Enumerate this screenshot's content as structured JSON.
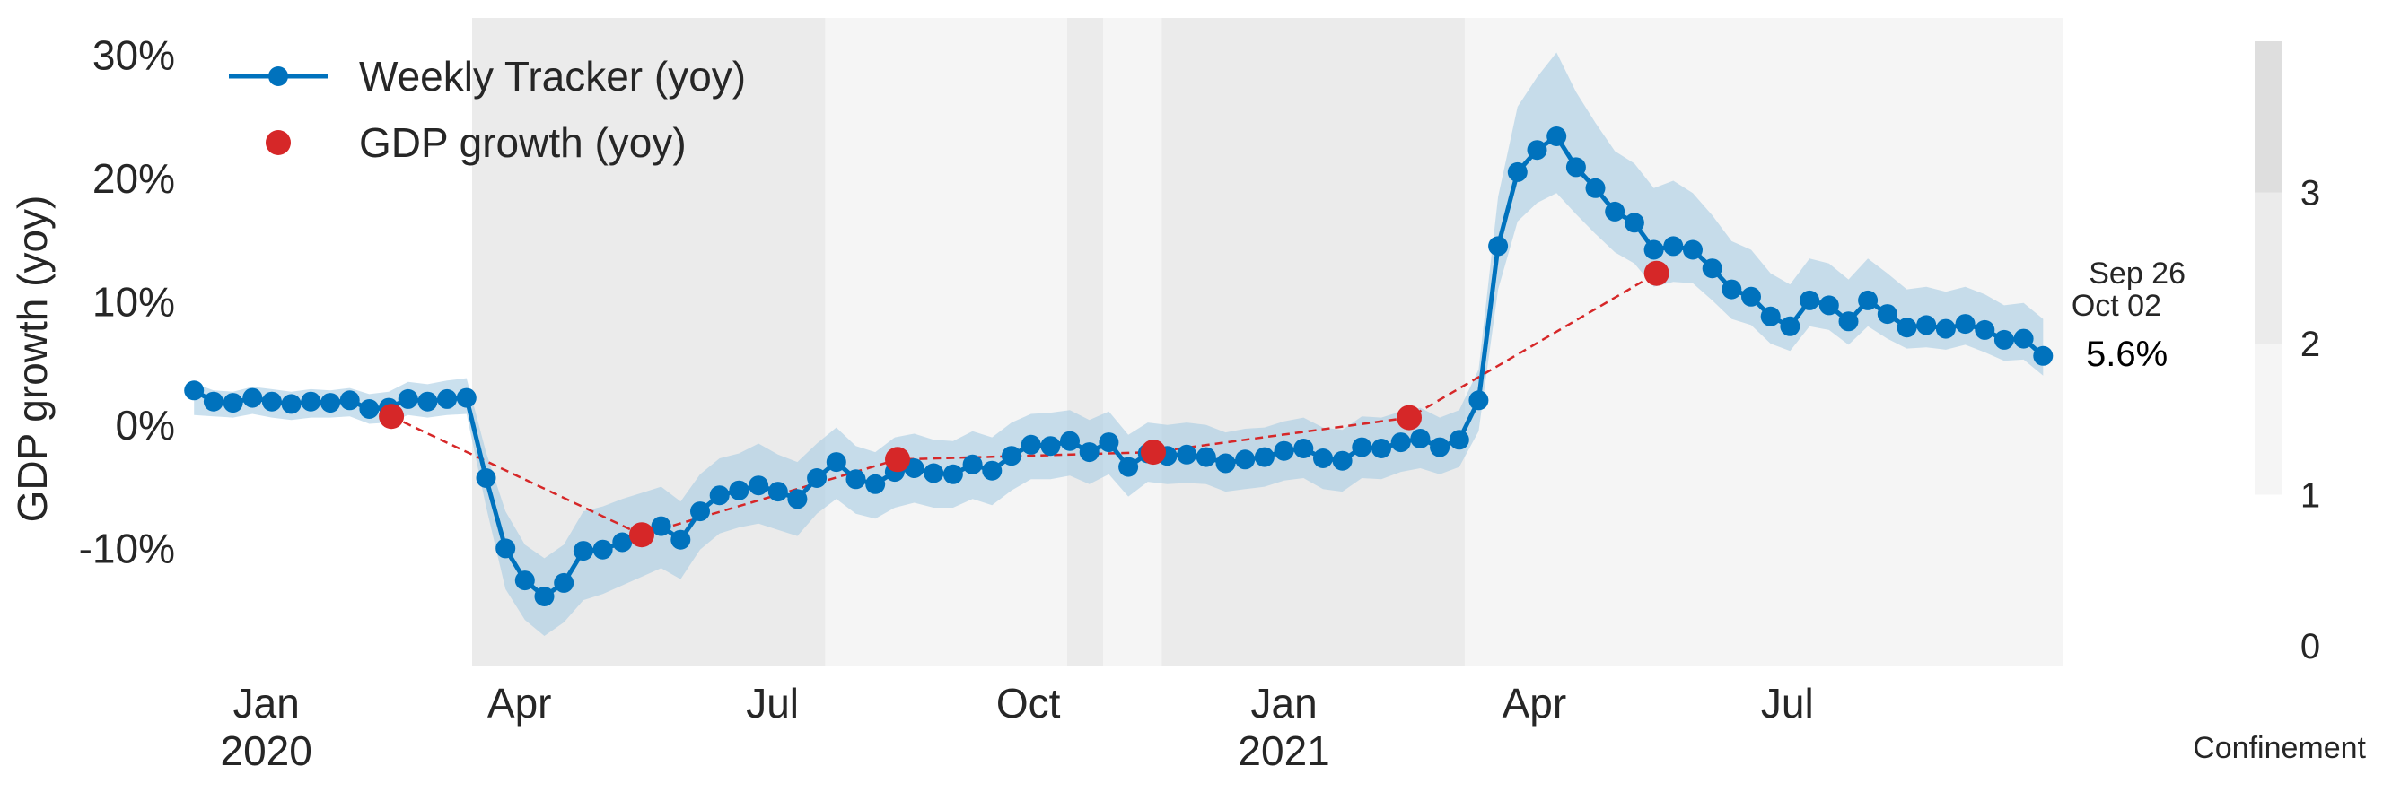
{
  "chart_data": {
    "type": "line",
    "ylabel": "GDP growth (yoy)",
    "ylim": [
      -0.195,
      0.33
    ],
    "xlim": [
      "2019-12-04",
      "2021-10-08"
    ],
    "y_ticks": [
      {
        "value": -0.1,
        "label": "-10%"
      },
      {
        "value": 0.0,
        "label": "0%"
      },
      {
        "value": 0.1,
        "label": "10%"
      },
      {
        "value": 0.2,
        "label": "20%"
      },
      {
        "value": 0.3,
        "label": "30%"
      }
    ],
    "x_ticks": [
      {
        "date": "2020-01-01",
        "label": "Jan",
        "sublabel": "2020"
      },
      {
        "date": "2020-04-01",
        "label": "Apr",
        "sublabel": ""
      },
      {
        "date": "2020-07-01",
        "label": "Jul",
        "sublabel": ""
      },
      {
        "date": "2020-10-01",
        "label": "Oct",
        "sublabel": ""
      },
      {
        "date": "2021-01-01",
        "label": "Jan",
        "sublabel": "2021"
      },
      {
        "date": "2021-04-01",
        "label": "Apr",
        "sublabel": ""
      },
      {
        "date": "2021-07-01",
        "label": "Jul",
        "sublabel": ""
      }
    ],
    "legend": {
      "position": "top-left",
      "entries": [
        {
          "label": "Weekly Tracker (yoy)",
          "color": "#0072bd",
          "marker": "line-dot"
        },
        {
          "label": "GDP growth (yoy)",
          "color": "#d62728",
          "marker": "dot"
        }
      ]
    },
    "tracker_color": "#0072bd",
    "band_color": "#a6cbe3",
    "gdp_color": "#d62728",
    "tracker": {
      "start_date": "2019-12-06",
      "step_days": 7,
      "values": [
        0.028,
        0.019,
        0.018,
        0.022,
        0.019,
        0.017,
        0.019,
        0.018,
        0.02,
        0.013,
        0.014,
        0.021,
        0.019,
        0.021,
        0.022,
        -0.043,
        -0.1,
        -0.126,
        -0.139,
        -0.128,
        -0.102,
        -0.101,
        -0.095,
        -0.088,
        -0.082,
        -0.093,
        -0.07,
        -0.057,
        -0.053,
        -0.049,
        -0.054,
        -0.06,
        -0.043,
        -0.03,
        -0.044,
        -0.048,
        -0.038,
        -0.035,
        -0.039,
        -0.04,
        -0.032,
        -0.037,
        -0.025,
        -0.016,
        -0.017,
        -0.013,
        -0.022,
        -0.014,
        -0.034,
        -0.023,
        -0.025,
        -0.024,
        -0.026,
        -0.031,
        -0.028,
        -0.026,
        -0.021,
        -0.019,
        -0.027,
        -0.029,
        -0.018,
        -0.019,
        -0.014,
        -0.011,
        -0.018,
        -0.012,
        0.02,
        0.145,
        0.205,
        0.223,
        0.234,
        0.209,
        0.192,
        0.173,
        0.164,
        0.142,
        0.145,
        0.142,
        0.127,
        0.11,
        0.104,
        0.088,
        0.08,
        0.101,
        0.097,
        0.084,
        0.101,
        0.09,
        0.079,
        0.081,
        0.078,
        0.082,
        0.077,
        0.069,
        0.07,
        0.056
      ],
      "band_lower": [
        0.008,
        0.007,
        0.006,
        0.009,
        0.006,
        0.004,
        0.006,
        0.006,
        0.007,
        0.001,
        0.002,
        0.008,
        0.006,
        0.008,
        0.009,
        -0.066,
        -0.133,
        -0.158,
        -0.171,
        -0.16,
        -0.142,
        -0.137,
        -0.13,
        -0.123,
        -0.116,
        -0.125,
        -0.101,
        -0.088,
        -0.083,
        -0.08,
        -0.085,
        -0.09,
        -0.072,
        -0.06,
        -0.072,
        -0.076,
        -0.067,
        -0.063,
        -0.067,
        -0.067,
        -0.06,
        -0.065,
        -0.053,
        -0.044,
        -0.044,
        -0.041,
        -0.048,
        -0.04,
        -0.058,
        -0.046,
        -0.048,
        -0.047,
        -0.048,
        -0.054,
        -0.052,
        -0.05,
        -0.045,
        -0.043,
        -0.052,
        -0.054,
        -0.043,
        -0.044,
        -0.038,
        -0.035,
        -0.04,
        -0.034,
        -0.005,
        0.11,
        0.165,
        0.18,
        0.188,
        0.171,
        0.155,
        0.14,
        0.131,
        0.112,
        0.116,
        0.115,
        0.101,
        0.086,
        0.081,
        0.066,
        0.06,
        0.08,
        0.077,
        0.065,
        0.08,
        0.07,
        0.062,
        0.063,
        0.061,
        0.065,
        0.059,
        0.052,
        0.053,
        0.04
      ],
      "band_upper": [
        0.034,
        0.028,
        0.027,
        0.031,
        0.029,
        0.027,
        0.029,
        0.028,
        0.03,
        0.025,
        0.027,
        0.035,
        0.033,
        0.036,
        0.038,
        -0.022,
        -0.07,
        -0.097,
        -0.108,
        -0.097,
        -0.07,
        -0.066,
        -0.06,
        -0.055,
        -0.05,
        -0.062,
        -0.04,
        -0.027,
        -0.023,
        -0.015,
        -0.024,
        -0.03,
        -0.015,
        -0.002,
        -0.017,
        -0.022,
        -0.01,
        -0.007,
        -0.012,
        -0.013,
        -0.005,
        -0.01,
        0.002,
        0.009,
        0.01,
        0.012,
        0.004,
        0.011,
        -0.008,
        0.002,
        0.0,
        0.002,
        0.0,
        -0.006,
        -0.003,
        -0.002,
        0.003,
        0.006,
        -0.002,
        -0.004,
        0.007,
        0.006,
        0.011,
        0.014,
        0.006,
        0.012,
        0.045,
        0.185,
        0.258,
        0.282,
        0.302,
        0.27,
        0.245,
        0.222,
        0.212,
        0.192,
        0.198,
        0.188,
        0.17,
        0.149,
        0.142,
        0.123,
        0.114,
        0.135,
        0.131,
        0.118,
        0.135,
        0.123,
        0.11,
        0.112,
        0.108,
        0.112,
        0.106,
        0.097,
        0.099,
        0.086
      ]
    },
    "gdp_growth": [
      {
        "date": "2020-02-15",
        "value": 0.007
      },
      {
        "date": "2020-05-15",
        "value": -0.089
      },
      {
        "date": "2020-08-15",
        "value": -0.028
      },
      {
        "date": "2020-11-15",
        "value": -0.022
      },
      {
        "date": "2021-02-15",
        "value": 0.006
      },
      {
        "date": "2021-05-15",
        "value": 0.123
      }
    ],
    "confinement_periods": [
      {
        "start": "2020-03-15",
        "end": "2020-07-20",
        "level": 2
      },
      {
        "start": "2020-07-20",
        "end": "2020-10-15",
        "level": 1
      },
      {
        "start": "2020-10-15",
        "end": "2020-10-28",
        "level": 2
      },
      {
        "start": "2020-10-28",
        "end": "2020-11-18",
        "level": 1
      },
      {
        "start": "2020-11-18",
        "end": "2021-03-07",
        "level": 2
      },
      {
        "start": "2021-03-07",
        "end": "2021-10-08",
        "level": 1
      }
    ],
    "confinement_colors": {
      "1": "#f5f5f5",
      "2": "#ebebeb",
      "3": "#dedede"
    },
    "annotations": {
      "dates": [
        "Sep 26",
        "Oct 02"
      ],
      "latest_value": "5.6%"
    },
    "colorbar": {
      "label": "Confinement",
      "ticks": [
        "0",
        "1",
        "2",
        "3"
      ],
      "segments": [
        {
          "from": 1,
          "to": 2,
          "color": "#f5f5f5"
        },
        {
          "from": 2,
          "to": 3,
          "color": "#ebebeb"
        },
        {
          "from": 3,
          "to": 4,
          "color": "#dedede"
        }
      ]
    }
  }
}
